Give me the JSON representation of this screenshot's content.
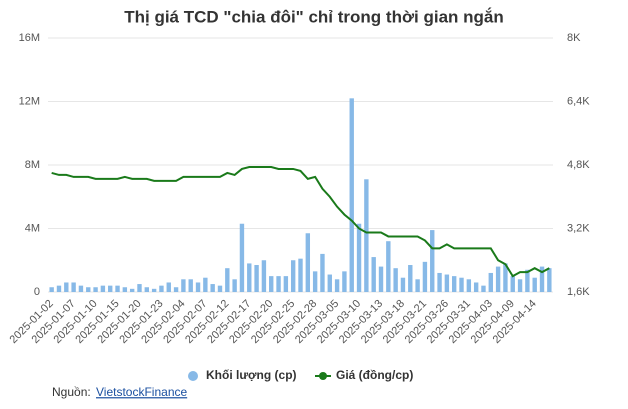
{
  "chart_data": {
    "type": "bar",
    "title": "Thị giá TCD \"chia đôi\" chỉ trong thời gian ngắn",
    "categories": [
      "2025-01-02",
      null,
      null,
      "2025-01-07",
      null,
      null,
      "2025-01-10",
      null,
      null,
      "2025-01-15",
      null,
      null,
      "2025-01-20",
      null,
      null,
      "2025-01-23",
      null,
      null,
      "2025-02-04",
      null,
      null,
      "2025-02-07",
      null,
      null,
      "2025-02-12",
      null,
      null,
      "2025-02-17",
      null,
      null,
      "2025-02-20",
      null,
      null,
      "2025-02-25",
      null,
      null,
      "2025-02-28",
      null,
      null,
      "2025-03-05",
      null,
      null,
      "2025-03-10",
      null,
      null,
      "2025-03-13",
      null,
      null,
      "2025-03-18",
      null,
      null,
      "2025-03-21",
      null,
      null,
      "2025-03-26",
      null,
      null,
      "2025-03-31",
      null,
      null,
      "2025-04-03",
      null,
      null,
      "2025-04-09",
      null,
      null,
      "2025-04-14",
      null,
      null
    ],
    "series": [
      {
        "name": "Khối lượng (cp)",
        "type": "bar",
        "color": "#87b9e7",
        "values": [
          300000,
          400000,
          600000,
          600000,
          400000,
          300000,
          300000,
          400000,
          400000,
          400000,
          300000,
          200000,
          500000,
          300000,
          200000,
          400000,
          600000,
          300000,
          800000,
          800000,
          600000,
          900000,
          500000,
          400000,
          1500000,
          800000,
          4300000,
          1800000,
          1700000,
          2000000,
          1000000,
          1000000,
          1000000,
          2000000,
          2100000,
          3700000,
          1300000,
          2400000,
          1100000,
          800000,
          1300000,
          12200000,
          4300000,
          7100000,
          2200000,
          1600000,
          3200000,
          1500000,
          900000,
          1700000,
          800000,
          1900000,
          3900000,
          1200000,
          1100000,
          1000000,
          900000,
          800000,
          600000,
          400000,
          1200000,
          1600000,
          1800000,
          1000000,
          800000,
          1400000,
          900000,
          1600000,
          1500000
        ]
      },
      {
        "name": "Giá (đồng/cp)",
        "type": "line",
        "axis": "y2",
        "color": "#1a7a1a",
        "values": [
          4600,
          4550,
          4550,
          4500,
          4500,
          4500,
          4450,
          4450,
          4450,
          4450,
          4500,
          4450,
          4450,
          4450,
          4400,
          4400,
          4400,
          4400,
          4500,
          4500,
          4500,
          4500,
          4500,
          4500,
          4600,
          4550,
          4700,
          4750,
          4750,
          4750,
          4750,
          4700,
          4700,
          4700,
          4650,
          4450,
          4500,
          4200,
          4000,
          3750,
          3550,
          3400,
          3200,
          3100,
          3100,
          3100,
          3000,
          3000,
          3000,
          3000,
          3000,
          2900,
          2700,
          2700,
          2800,
          2700,
          2700,
          2700,
          2700,
          2700,
          2700,
          2400,
          2300,
          2000,
          2100,
          2100,
          2200,
          2100,
          2200
        ]
      }
    ],
    "ylim": [
      0,
      16000000
    ],
    "yticks": [
      0,
      {
        "value": 4000000,
        "label": "4M"
      },
      {
        "value": 8000000,
        "label": "8M"
      },
      {
        "value": 12000000,
        "label": "12M"
      },
      {
        "value": 16000000,
        "label": "16M"
      }
    ],
    "y2lim": [
      1600,
      8000
    ],
    "y2ticks": [
      {
        "value": 1600,
        "label": "1,6K"
      },
      {
        "value": 3200,
        "label": "3,2K"
      },
      {
        "value": 4800,
        "label": "4,8K"
      },
      {
        "value": 6400,
        "label": "6,4K"
      },
      {
        "value": 8000,
        "label": "8K"
      }
    ],
    "grid": true,
    "source_label": "Nguồn:",
    "source_link": "VietstockFinance"
  }
}
